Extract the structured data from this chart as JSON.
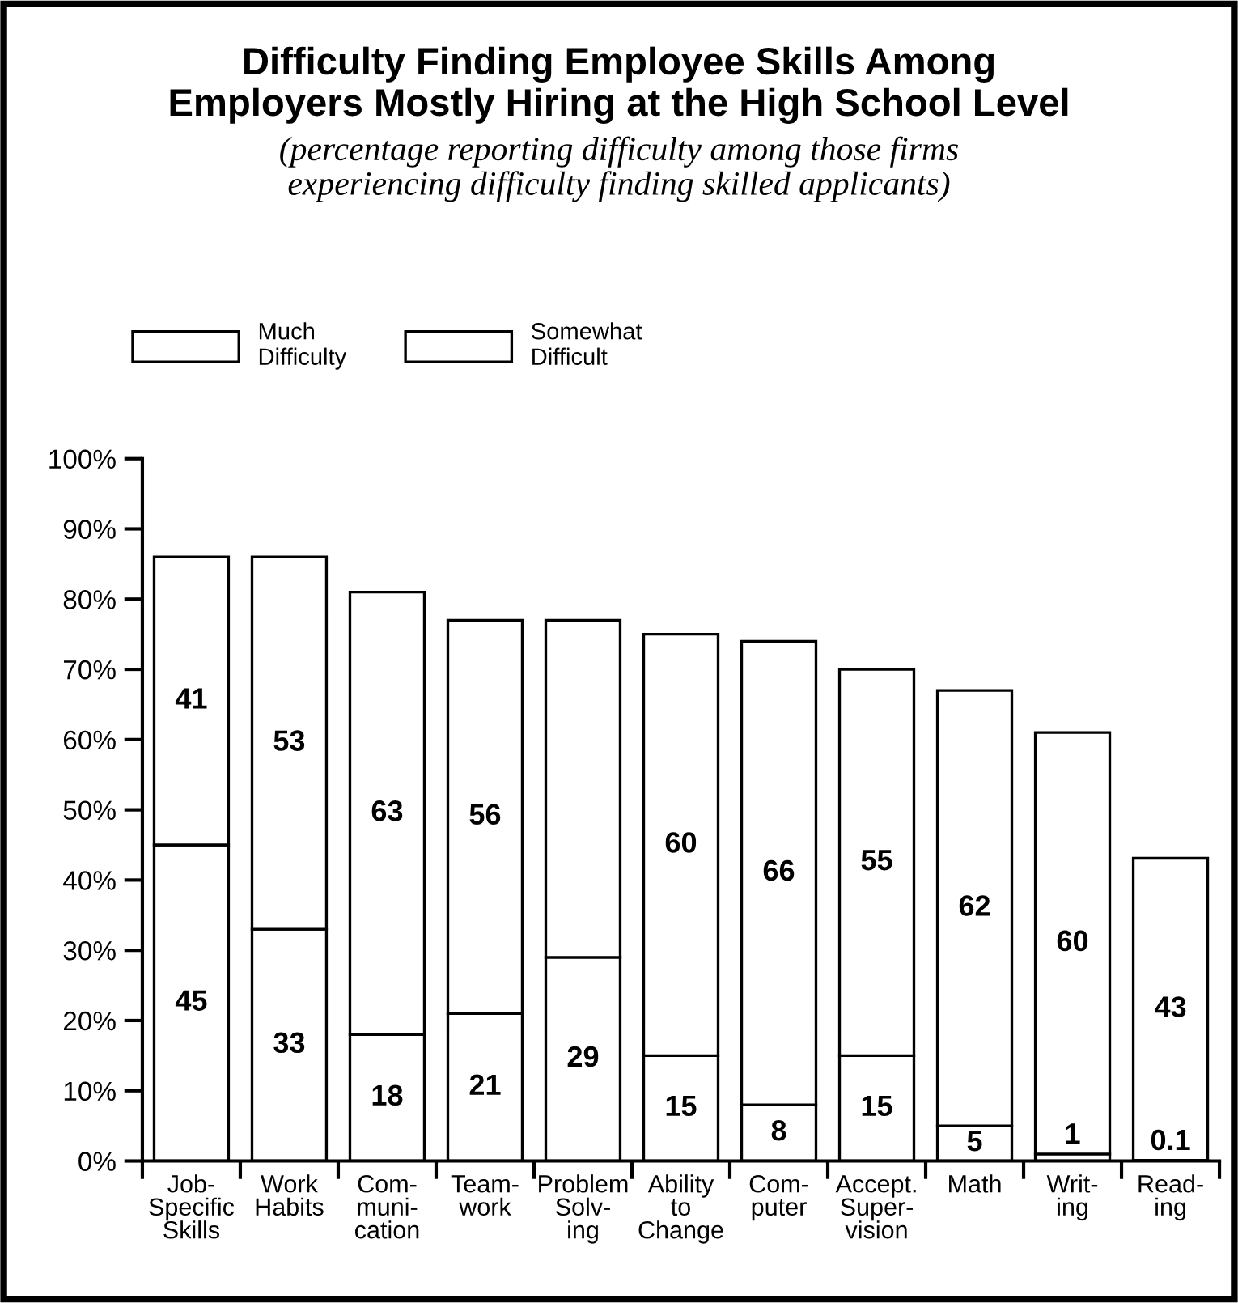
{
  "chart_data": {
    "type": "bar",
    "stacked": true,
    "title": "Difficulty Finding Employee Skills Among\nEmployers Mostly Hiring at the High School Level",
    "subtitle": "(percentage reporting difficulty among those firms\nexperiencing difficulty finding skilled applicants)",
    "categories": [
      "Job-\nSpecific\nSkills",
      "Work\nHabits",
      "Com-\nmuni-\ncation",
      "Team-\nwork",
      "Problem\nSolv-\ning",
      "Ability\nto\nChange",
      "Com-\nputer",
      "Accept.\nSuper-\nvision",
      "Math",
      "Writ-\ning",
      "Read-\ning"
    ],
    "series": [
      {
        "name": "Much\nDifficulty",
        "color": "#ffffff",
        "values": [
          45,
          33,
          18,
          21,
          29,
          15,
          8,
          15,
          5,
          1,
          0.1
        ],
        "value_labels": [
          "45",
          "33",
          "18",
          "21",
          "29",
          "15",
          "8",
          "15",
          "5",
          "1",
          "0.1"
        ]
      },
      {
        "name": "Somewhat\nDifficult",
        "color": "#ffffff",
        "values": [
          41,
          53,
          63,
          56,
          48,
          60,
          66,
          55,
          62,
          60,
          43
        ],
        "value_labels": [
          "41",
          "53",
          "63",
          "56",
          null,
          "60",
          "66",
          "55",
          "62",
          "60",
          "43"
        ]
      }
    ],
    "ylim": [
      0,
      100
    ],
    "yticks": [
      {
        "value": 0,
        "label": "0%"
      },
      {
        "value": 10,
        "label": "10%"
      },
      {
        "value": 20,
        "label": "20%"
      },
      {
        "value": 30,
        "label": "30%"
      },
      {
        "value": 40,
        "label": "40%"
      },
      {
        "value": 50,
        "label": "50%"
      },
      {
        "value": 60,
        "label": "60%"
      },
      {
        "value": 70,
        "label": "70%"
      },
      {
        "value": 80,
        "label": "80%"
      },
      {
        "value": 90,
        "label": "90%"
      },
      {
        "value": 100,
        "label": "100%"
      }
    ],
    "grid": false,
    "legend": "top left"
  }
}
